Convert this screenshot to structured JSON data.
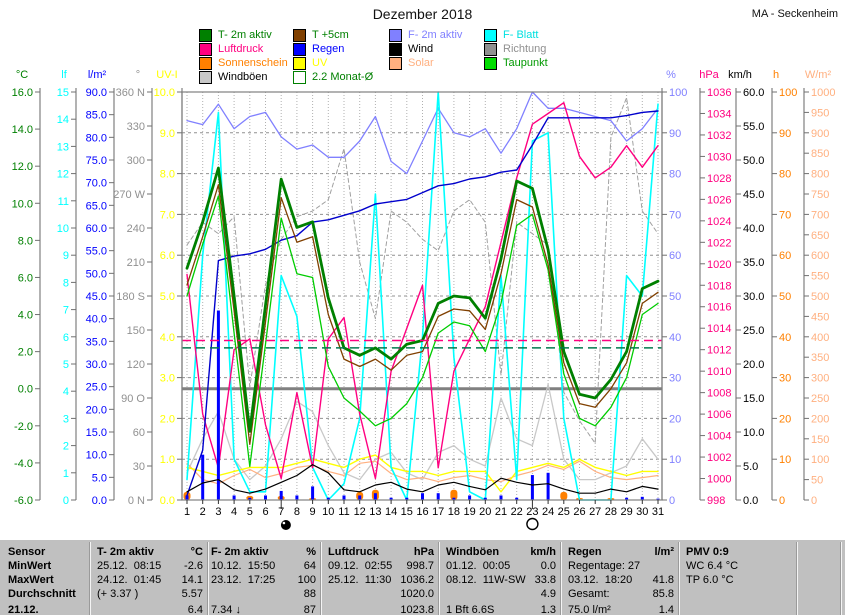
{
  "header": {
    "title": "Dezember 2018",
    "station": "MA - Seckenheim"
  },
  "legend": {
    "columns": [
      [
        {
          "label": "T- 2m aktiv",
          "color": "#008000",
          "text": "#008000"
        },
        {
          "label": "Luftdruck",
          "color": "#ff0080",
          "text": "#ff0080"
        },
        {
          "label": "Sonnenschein",
          "color": "#ff8000",
          "text": "#ff8000"
        },
        {
          "label": "Windböen",
          "color": "#c8c8c8",
          "text": "#000000"
        }
      ],
      [
        {
          "label": "T +5cm",
          "color": "#804000",
          "text": "#008000"
        },
        {
          "label": "Regen",
          "color": "#0000ff",
          "text": "#0000ff"
        },
        {
          "label": "UV",
          "color": "#ffff00",
          "text": "#ffff00"
        },
        {
          "label": "2.2 Monat-Ø",
          "color": "#ffffff",
          "text": "#008000",
          "border": "#008000"
        }
      ],
      [
        {
          "label": "F- 2m aktiv",
          "color": "#8080ff",
          "text": "#8080ff"
        },
        {
          "label": "Wind",
          "color": "#000000",
          "text": "#000000"
        },
        {
          "label": "Solar",
          "color": "#ffb080",
          "text": "#ffb080"
        }
      ],
      [
        {
          "label": "F- Blatt",
          "color": "#00ffff",
          "text": "#00e0e0"
        },
        {
          "label": "Richtung",
          "color": "#909090",
          "text": "#909090"
        },
        {
          "label": "Taupunkt",
          "color": "#00dd00",
          "text": "#009900"
        }
      ]
    ]
  },
  "axes": {
    "left": [
      {
        "id": "temp",
        "unit": "°C",
        "color": "#008000",
        "min": -6,
        "max": 16,
        "step": 2,
        "fmt": "1dp"
      },
      {
        "id": "lf",
        "unit": "lf",
        "color": "#00ffff",
        "min": 0,
        "max": 15,
        "step": 1,
        "fmt": "int"
      },
      {
        "id": "rain",
        "unit": "l/m²",
        "color": "#0000ff",
        "min": 0,
        "max": 90,
        "step": 5,
        "fmt": "1dp"
      },
      {
        "id": "dir",
        "unit": "°",
        "color": "#909090",
        "min": 0,
        "max": 360,
        "step": 30,
        "fmt": "int",
        "labels": [
          {
            "v": 360,
            "t": "360 N"
          },
          {
            "v": 330,
            "t": "330"
          },
          {
            "v": 300,
            "t": "300"
          },
          {
            "v": 270,
            "t": "270 W"
          },
          {
            "v": 240,
            "t": "240"
          },
          {
            "v": 210,
            "t": "210"
          },
          {
            "v": 180,
            "t": "180 S"
          },
          {
            "v": 150,
            "t": "150"
          },
          {
            "v": 120,
            "t": "120"
          },
          {
            "v": 90,
            "t": "90  O"
          },
          {
            "v": 60,
            "t": "60"
          },
          {
            "v": 30,
            "t": "30"
          },
          {
            "v": 0,
            "t": "0  N"
          }
        ]
      },
      {
        "id": "uv",
        "unit": "UV-I",
        "color": "#ffff00",
        "min": 0,
        "max": 10,
        "step": 1,
        "fmt": "1dp"
      }
    ],
    "right": [
      {
        "id": "hum",
        "unit": "%",
        "color": "#8080ff",
        "min": 0,
        "max": 100,
        "step": 10,
        "fmt": "int"
      },
      {
        "id": "hpa",
        "unit": "hPa",
        "color": "#ff0080",
        "min": 998,
        "max": 1036,
        "step": 2,
        "fmt": "int"
      },
      {
        "id": "kmh",
        "unit": "km/h",
        "color": "#000000",
        "min": 0,
        "max": 60,
        "step": 5,
        "fmt": "1dp"
      },
      {
        "id": "sun_h",
        "unit": "h",
        "color": "#ff8000",
        "min": 0,
        "max": 100,
        "step": 10,
        "fmt": "int"
      },
      {
        "id": "wm2",
        "unit": "W/m²",
        "color": "#ffb080",
        "min": 0,
        "max": 1000,
        "step": 50,
        "fmt": "int"
      }
    ]
  },
  "chart_data": {
    "type": "line",
    "title": "Dezember 2018",
    "days": [
      1,
      2,
      3,
      4,
      5,
      6,
      7,
      8,
      9,
      10,
      11,
      12,
      13,
      14,
      15,
      16,
      17,
      18,
      19,
      20,
      21,
      22,
      23,
      24,
      25,
      26,
      27,
      28,
      29,
      30,
      31
    ],
    "moon_markers": [
      {
        "day": 7.3,
        "phase": "new"
      },
      {
        "day": 23,
        "phase": "full"
      }
    ],
    "long_tick_days": [
      7,
      23
    ],
    "reference_lines": [
      {
        "name": "freezing-line",
        "axis": "temp",
        "value": 0.0,
        "color": "#808080",
        "width": 3,
        "dash": "",
        "above": false
      },
      {
        "name": "avg-line-pink",
        "axis": "temp",
        "value": 2.6,
        "color": "#ff0080",
        "width": 1.5,
        "dash": "9,5",
        "above": true
      },
      {
        "name": "monat-avg-line",
        "axis": "temp",
        "value": 2.2,
        "color": "#007a4d",
        "width": 1.5,
        "dash": "9,5",
        "above": true,
        "label": "2.2 Monat-Ø"
      }
    ],
    "series": [
      {
        "name": "Richtung",
        "axis": "dir",
        "type": "line",
        "color": "#a0a0a0",
        "width": 1,
        "dash": "4,3",
        "values": [
          225,
          245,
          235,
          250,
          100,
          190,
          230,
          250,
          255,
          265,
          310,
          210,
          160,
          255,
          245,
          230,
          220,
          255,
          265,
          245,
          110,
          245,
          235,
          225,
          95,
          70,
          50,
          320,
          355,
          255,
          235
        ]
      },
      {
        "name": "Windböen",
        "axis": "kmh",
        "type": "line",
        "color": "#c8c8c8",
        "width": 1.3,
        "values": [
          4,
          9,
          13,
          6,
          3,
          5,
          9,
          14.5,
          13,
          8,
          4,
          3,
          6,
          7,
          4,
          3,
          7,
          8,
          6,
          5,
          15,
          9,
          8,
          17,
          6,
          3,
          3,
          4,
          5,
          9,
          6
        ]
      },
      {
        "name": "Solar",
        "axis": "wm2",
        "type": "line",
        "color": "#ffb080",
        "width": 1.2,
        "values": [
          90,
          50,
          40,
          60,
          75,
          55,
          65,
          80,
          85,
          70,
          60,
          90,
          95,
          65,
          50,
          55,
          45,
          55,
          60,
          50,
          45,
          60,
          70,
          85,
          75,
          95,
          70,
          55,
          50,
          55,
          60
        ]
      },
      {
        "name": "UV",
        "axis": "uv",
        "type": "line",
        "color": "#ffff00",
        "width": 1.4,
        "values": [
          0.8,
          0.7,
          0.6,
          0.7,
          0.8,
          0.8,
          0.8,
          0.9,
          1.0,
          0.9,
          0.8,
          1.0,
          1.1,
          0.8,
          0.7,
          0.7,
          0.6,
          0.7,
          0.7,
          0.7,
          0.2,
          0.7,
          0.8,
          0.9,
          0.8,
          1.0,
          0.8,
          0.7,
          0.6,
          0.7,
          0.7
        ]
      },
      {
        "name": "Sonnenschein",
        "axis": "sun_h",
        "type": "bars",
        "color": "#ff8000",
        "barw": 7,
        "values": [
          2,
          0,
          0,
          0,
          1,
          0,
          1,
          0,
          0.5,
          0,
          0,
          2,
          2.5,
          0,
          0,
          0,
          0,
          2.5,
          0,
          0,
          0,
          0,
          0,
          0,
          2,
          0.5,
          0,
          0.5,
          0,
          0,
          0
        ]
      },
      {
        "name": "F- 2m aktiv",
        "axis": "hum",
        "type": "line",
        "color": "#8080ff",
        "width": 1.3,
        "values": [
          93,
          92,
          97,
          91,
          94,
          95,
          89,
          86,
          87,
          84,
          84,
          88,
          94,
          83,
          80,
          88,
          96,
          90,
          89,
          91,
          85,
          91,
          100,
          96,
          96,
          95,
          94,
          93,
          88,
          91,
          96
        ]
      },
      {
        "name": "F- Blatt",
        "axis": "hum",
        "type": "line",
        "color": "#00ffff",
        "width": 1.6,
        "values": [
          5,
          60,
          95,
          10,
          2,
          2,
          55,
          45,
          8,
          0,
          4,
          20,
          75,
          8,
          0,
          40,
          100,
          35,
          2,
          0,
          55,
          5,
          88,
          90,
          20,
          0,
          0,
          0,
          55,
          50,
          97
        ]
      },
      {
        "name": "Luftdruck",
        "axis": "hpa",
        "type": "line",
        "color": "#ff0080",
        "width": 1.4,
        "values": [
          1019,
          1006,
          1001,
          1012,
          1013,
          1005,
          1000,
          1008,
          1001,
          1013,
          1015,
          1006,
          1000,
          1010,
          1014,
          1018,
          1001,
          1010,
          1013,
          1016,
          1022,
          1028,
          1033,
          1034,
          1035,
          1030,
          1028,
          1029,
          1031,
          1029,
          1031
        ]
      },
      {
        "name": "Regen",
        "axis": "rain",
        "type": "bars",
        "color": "#0000ff",
        "barw": 3,
        "values": [
          1,
          10,
          41.8,
          1,
          0.5,
          1,
          2,
          1,
          3,
          0.5,
          1,
          1,
          1.5,
          0.5,
          0.5,
          1.5,
          1.5,
          0.5,
          1,
          0.5,
          1,
          0.5,
          5.5,
          6,
          0,
          0,
          0,
          0,
          0.5,
          0.7,
          0.3
        ]
      },
      {
        "name": "Regen (Summe)",
        "axis": "rain",
        "type": "line",
        "color": "#0000cc",
        "width": 1.4,
        "values": [
          1,
          11,
          52.8,
          53.8,
          54.3,
          55.3,
          57.3,
          58.3,
          61.3,
          61.8,
          62.8,
          63.8,
          65.3,
          65.8,
          66.3,
          67.8,
          69.3,
          69.8,
          70.8,
          71.3,
          72.3,
          72.8,
          78.3,
          84.3,
          84.3,
          84.3,
          84.3,
          84.3,
          84.8,
          85.5,
          85.8
        ]
      },
      {
        "name": "Taupunkt",
        "axis": "temp",
        "type": "line",
        "color": "#00cc00",
        "width": 1.3,
        "values": [
          5.0,
          7.8,
          10.4,
          3.0,
          -4.2,
          2.4,
          9.2,
          6.2,
          6.0,
          1.2,
          -0.5,
          -1.2,
          -2.0,
          -1.6,
          -0.8,
          0.6,
          3.0,
          3.6,
          3.4,
          2.0,
          4.6,
          8.8,
          9.4,
          6.4,
          0.8,
          -1.6,
          -2.0,
          -1.0,
          0.6,
          4.0,
          4.6
        ]
      },
      {
        "name": "T +5cm",
        "axis": "temp",
        "type": "line",
        "color": "#804000",
        "width": 1.3,
        "values": [
          5.6,
          8.2,
          11.0,
          4.2,
          -3.0,
          3.6,
          10.3,
          7.9,
          8.2,
          4.0,
          1.6,
          1.2,
          1.6,
          1.0,
          1.8,
          2.0,
          3.9,
          4.3,
          4.2,
          3.2,
          6.2,
          10.2,
          9.8,
          6.7,
          1.4,
          -0.8,
          -1.0,
          0.0,
          1.4,
          4.6,
          5.2
        ]
      },
      {
        "name": "Wind",
        "axis": "kmh",
        "type": "line",
        "color": "#000000",
        "width": 1.2,
        "values": [
          1.2,
          2.5,
          3.0,
          1.5,
          1.0,
          1.6,
          2.6,
          3.6,
          5.2,
          4.0,
          1.5,
          1.2,
          2.2,
          2.6,
          1.6,
          1.2,
          2.2,
          2.6,
          2.0,
          1.5,
          3.2,
          2.6,
          2.2,
          2.4,
          1.6,
          1.0,
          1.0,
          1.6,
          1.2,
          2.0,
          1.6
        ]
      },
      {
        "name": "T- 2m aktiv",
        "axis": "temp",
        "type": "line",
        "color": "#008000",
        "width": 2.8,
        "values": [
          6.5,
          9.0,
          11.9,
          5.0,
          -2.3,
          4.5,
          11.3,
          8.7,
          9.0,
          4.9,
          2.2,
          1.8,
          2.2,
          1.6,
          2.4,
          2.6,
          4.6,
          5.0,
          4.9,
          3.8,
          7.0,
          11.2,
          10.8,
          7.5,
          2.0,
          -0.3,
          -0.5,
          0.5,
          2.0,
          5.4,
          5.8
        ]
      }
    ]
  },
  "table": {
    "row_labels": [
      "Sensor",
      "MinWert",
      "MaxWert",
      "Durchschnitt",
      "21.12."
    ],
    "columns": [
      {
        "name": "T- 2m aktiv",
        "unit": "°C",
        "cells": [
          {
            "note": "25.12.  08:15",
            "value": "-2.6"
          },
          {
            "note": "24.12.  01:45",
            "value": "14.1"
          },
          {
            "note": "(+ 3.37 )",
            "value": "5.57"
          },
          {
            "note": "",
            "value": "6.4"
          }
        ]
      },
      {
        "name": "F- 2m aktiv",
        "unit": "%",
        "cells": [
          {
            "note": "10.12.  15:50",
            "value": "64"
          },
          {
            "note": "23.12.  17:25",
            "value": "100"
          },
          {
            "note": "",
            "value": "88"
          },
          {
            "note": "7.34 ↓",
            "value": "87"
          }
        ]
      },
      {
        "name": "Luftdruck",
        "unit": "hPa",
        "cells": [
          {
            "note": "09.12.  02:55",
            "value": "998.7"
          },
          {
            "note": "25.12.  11:30",
            "value": "1036.2"
          },
          {
            "note": "",
            "value": "1020.0"
          },
          {
            "note": "",
            "value": "1023.8"
          }
        ]
      },
      {
        "name": "Windböen",
        "unit": "km/h",
        "cells": [
          {
            "note": "01.12.  00:05",
            "value": "0.0"
          },
          {
            "note": "08.12.  11W-SW",
            "value": "33.8"
          },
          {
            "note": "",
            "value": "4.9"
          },
          {
            "note": "1 Bft 6.6S",
            "value": "1.3"
          }
        ]
      },
      {
        "name": "Regen",
        "unit": "l/m²",
        "cells": [
          {
            "note": "Regentage: 27",
            "value": ""
          },
          {
            "note": "03.12.  18:20",
            "value": "41.8"
          },
          {
            "note": "Gesamt:",
            "value": "85.8"
          },
          {
            "note": "75.0 l/m²",
            "value": "1.4"
          }
        ]
      },
      {
        "name": "PMV 0:9",
        "unit": "",
        "cells": [
          {
            "note": "WC 6.4 °C",
            "value": ""
          },
          {
            "note": "TP 6.0 °C",
            "value": ""
          },
          {
            "note": "",
            "value": ""
          },
          {
            "note": "",
            "value": ""
          }
        ]
      }
    ]
  }
}
